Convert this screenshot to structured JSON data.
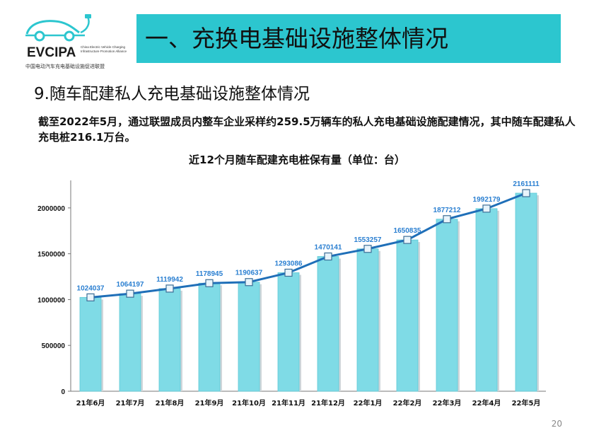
{
  "logo": {
    "brand": "EVCIPA",
    "brand_sub": "China Electric Vehicle Charging Infrastructure Promotion Alliance",
    "brand_cn": "中国电动汽车充电基础设施促进联盟"
  },
  "header": {
    "title": "一、充换电基础设施整体情况"
  },
  "section": {
    "title": "9.随车配建私人充电基础设施整体情况"
  },
  "description": "截至2022年5月，通过联盟成员内整车企业采样约259.5万辆车的私人充电基础设施配建情况，其中随车配建私人充电桩216.1万台。",
  "page_number": "20",
  "colors": {
    "accent": "#2cc6cf",
    "bar": "#7fdbe6",
    "line": "#1f6fb8",
    "label": "#2a7fd1"
  },
  "chart_data": {
    "type": "bar",
    "title": "近12个月随车配建充电桩保有量（单位：台）",
    "categories": [
      "21年6月",
      "21年7月",
      "21年8月",
      "21年9月",
      "21年10月",
      "21年11月",
      "21年12月",
      "22年1月",
      "22年2月",
      "22年3月",
      "22年4月",
      "22年5月"
    ],
    "values": [
      1024037,
      1064197,
      1119942,
      1178945,
      1190637,
      1293086,
      1470141,
      1553257,
      1650835,
      1877212,
      1992179,
      2161111
    ],
    "overlay_line": true,
    "ylim": [
      0,
      2300000
    ],
    "yticks": [
      0,
      500000,
      1000000,
      1500000,
      2000000
    ],
    "ytick_labels": [
      "0",
      "500000",
      "1000000",
      "1500000",
      "2000000"
    ],
    "xlabel": "",
    "ylabel": "",
    "grid": false,
    "legend": "none"
  }
}
